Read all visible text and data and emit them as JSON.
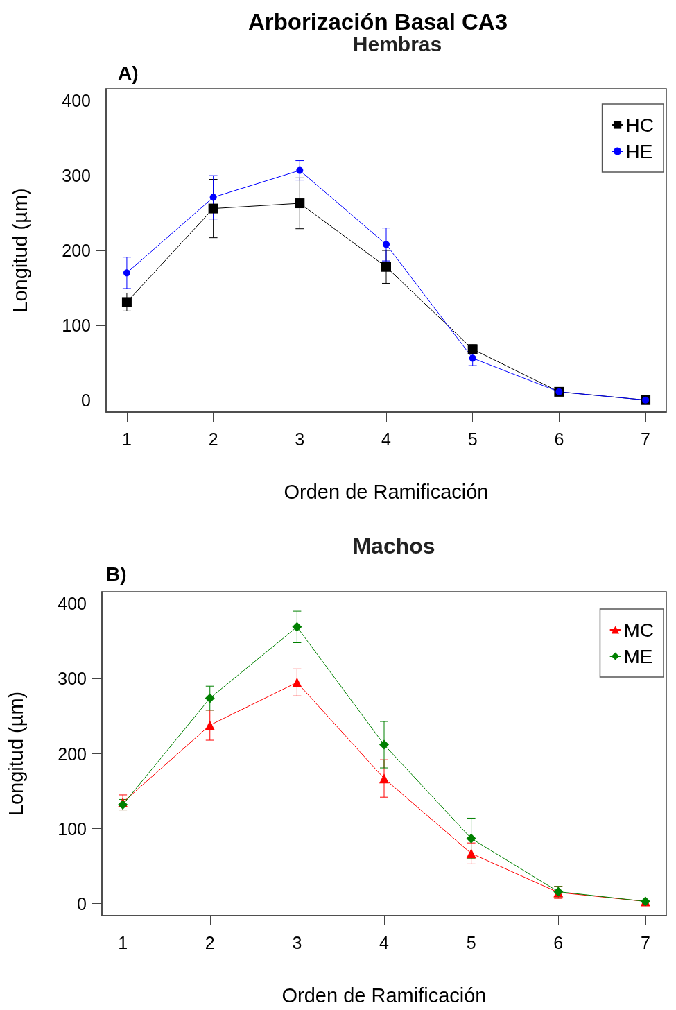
{
  "chart_data": [
    {
      "type": "line",
      "title": "Arborización Basal CA3",
      "subtitle": "Hembras",
      "annotations": [
        "A)"
      ],
      "xlabel": "Orden de Ramificación",
      "ylabel": "Longitud (µm)",
      "x": [
        1,
        2,
        3,
        4,
        5,
        6,
        7
      ],
      "xlim": [
        0.76,
        7.24
      ],
      "xticks": [
        1,
        2,
        3,
        4,
        5,
        6,
        7
      ],
      "ylim": [
        -16,
        416
      ],
      "yticks": [
        0,
        100,
        200,
        300,
        400
      ],
      "grid": false,
      "legend": "top right",
      "line_style": "solid",
      "series": [
        {
          "name": "HC",
          "color": "#000000",
          "marker": "square",
          "values": [
            131,
            256,
            263,
            178,
            68,
            11,
            0
          ],
          "errors": [
            12,
            39,
            34,
            22,
            6,
            null,
            null
          ]
        },
        {
          "name": "HE",
          "color": "#0000ff",
          "marker": "circle",
          "values": [
            170,
            271,
            307,
            208,
            56,
            11,
            0
          ],
          "errors": [
            21,
            29,
            13,
            22,
            10,
            null,
            null
          ]
        }
      ]
    },
    {
      "type": "line",
      "title": "Machos",
      "annotations": [
        "B)"
      ],
      "xlabel": "Orden de Ramificación",
      "ylabel": "Longitud (µm)",
      "x": [
        1,
        2,
        3,
        4,
        5,
        6,
        7
      ],
      "xlim": [
        0.76,
        7.24
      ],
      "xticks": [
        1,
        2,
        3,
        4,
        5,
        6,
        7
      ],
      "ylim": [
        -16,
        416
      ],
      "yticks": [
        0,
        100,
        200,
        300,
        400
      ],
      "grid": false,
      "legend": "top right",
      "line_style": "solid",
      "series": [
        {
          "name": "MC",
          "color": "#ff0000",
          "marker": "triangle",
          "values": [
            135,
            238,
            295,
            167,
            67,
            15,
            3
          ],
          "errors": [
            10,
            20,
            18,
            25,
            14,
            8,
            null
          ]
        },
        {
          "name": "ME",
          "color": "#008000",
          "marker": "diamond",
          "values": [
            132,
            274,
            369,
            212,
            87,
            16,
            3
          ],
          "errors": [
            7,
            16,
            21,
            31,
            27,
            7,
            null
          ]
        }
      ]
    }
  ]
}
